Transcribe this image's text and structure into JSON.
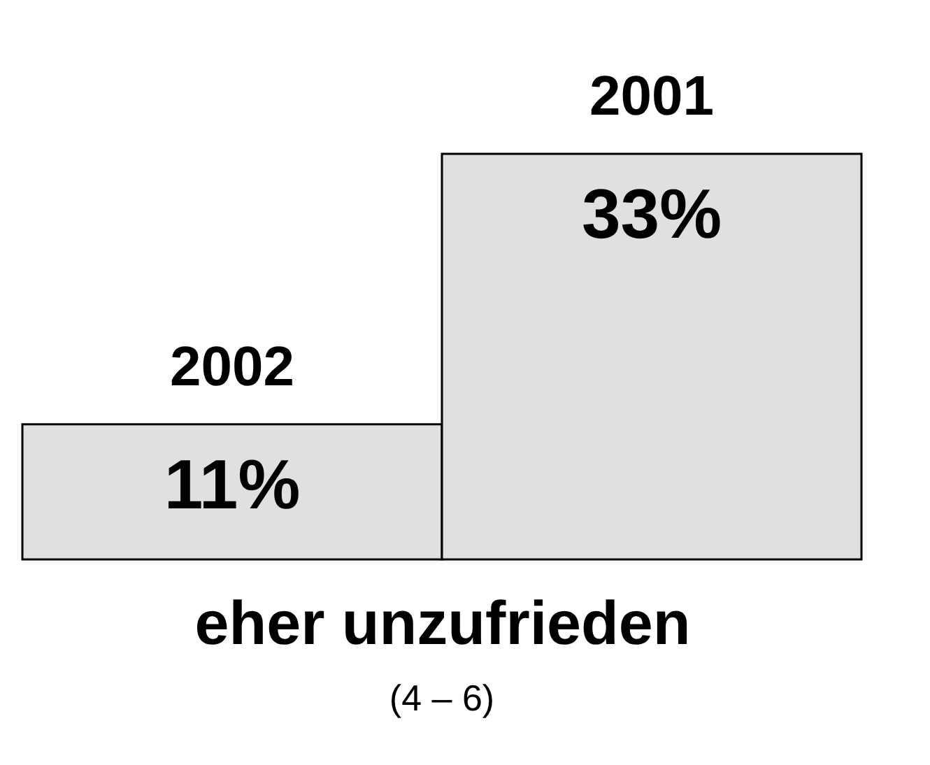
{
  "chart_data": {
    "type": "bar",
    "categories": [
      "2002",
      "2001"
    ],
    "values": [
      11,
      33
    ],
    "value_labels": [
      "11%",
      "33%"
    ],
    "colors": [
      "#e0e0e0",
      "#e0e0e0"
    ],
    "xlabel": "eher unzufrieden",
    "annotations": [
      "(4 – 6)"
    ]
  }
}
